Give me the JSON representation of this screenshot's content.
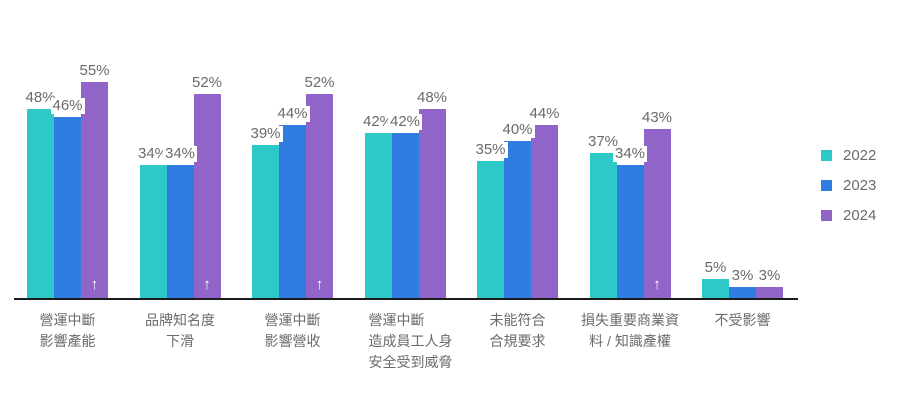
{
  "chart_data": {
    "type": "bar",
    "title": "",
    "value_suffix": "%",
    "ylim": [
      0,
      60
    ],
    "grid": false,
    "legend_position": "right",
    "categories": [
      {
        "lines": [
          "營運中斷",
          "影響產能"
        ],
        "align": "center"
      },
      {
        "lines": [
          "品牌知名度",
          "下滑"
        ],
        "align": "center"
      },
      {
        "lines": [
          "營運中斷",
          "影響營收"
        ],
        "align": "center"
      },
      {
        "lines": [
          "營運中斷",
          "造成員工人身",
          "安全受到威脅"
        ],
        "align": "left"
      },
      {
        "lines": [
          "未能符合",
          "合規要求"
        ],
        "align": "center"
      },
      {
        "lines": [
          "損失重要商業資",
          "料 / 知識產權"
        ],
        "align": "center"
      },
      {
        "lines": [
          "不受影響"
        ],
        "align": "center"
      }
    ],
    "series": [
      {
        "name": "2022",
        "color": "#2cc9c7",
        "values": [
          48,
          34,
          39,
          42,
          35,
          37,
          5
        ]
      },
      {
        "name": "2023",
        "color": "#2f7de0",
        "values": [
          46,
          34,
          44,
          42,
          40,
          34,
          3
        ]
      },
      {
        "name": "2024",
        "color": "#9164c8",
        "values": [
          55,
          52,
          52,
          48,
          44,
          43,
          3
        ],
        "arrow_up": [
          true,
          true,
          true,
          false,
          false,
          true,
          false
        ]
      }
    ],
    "arrow_icon": "↑"
  },
  "colors": {
    "axis_line": "#1b1b1b",
    "label_text": "#6b6b6b",
    "background": "#ffffff"
  }
}
